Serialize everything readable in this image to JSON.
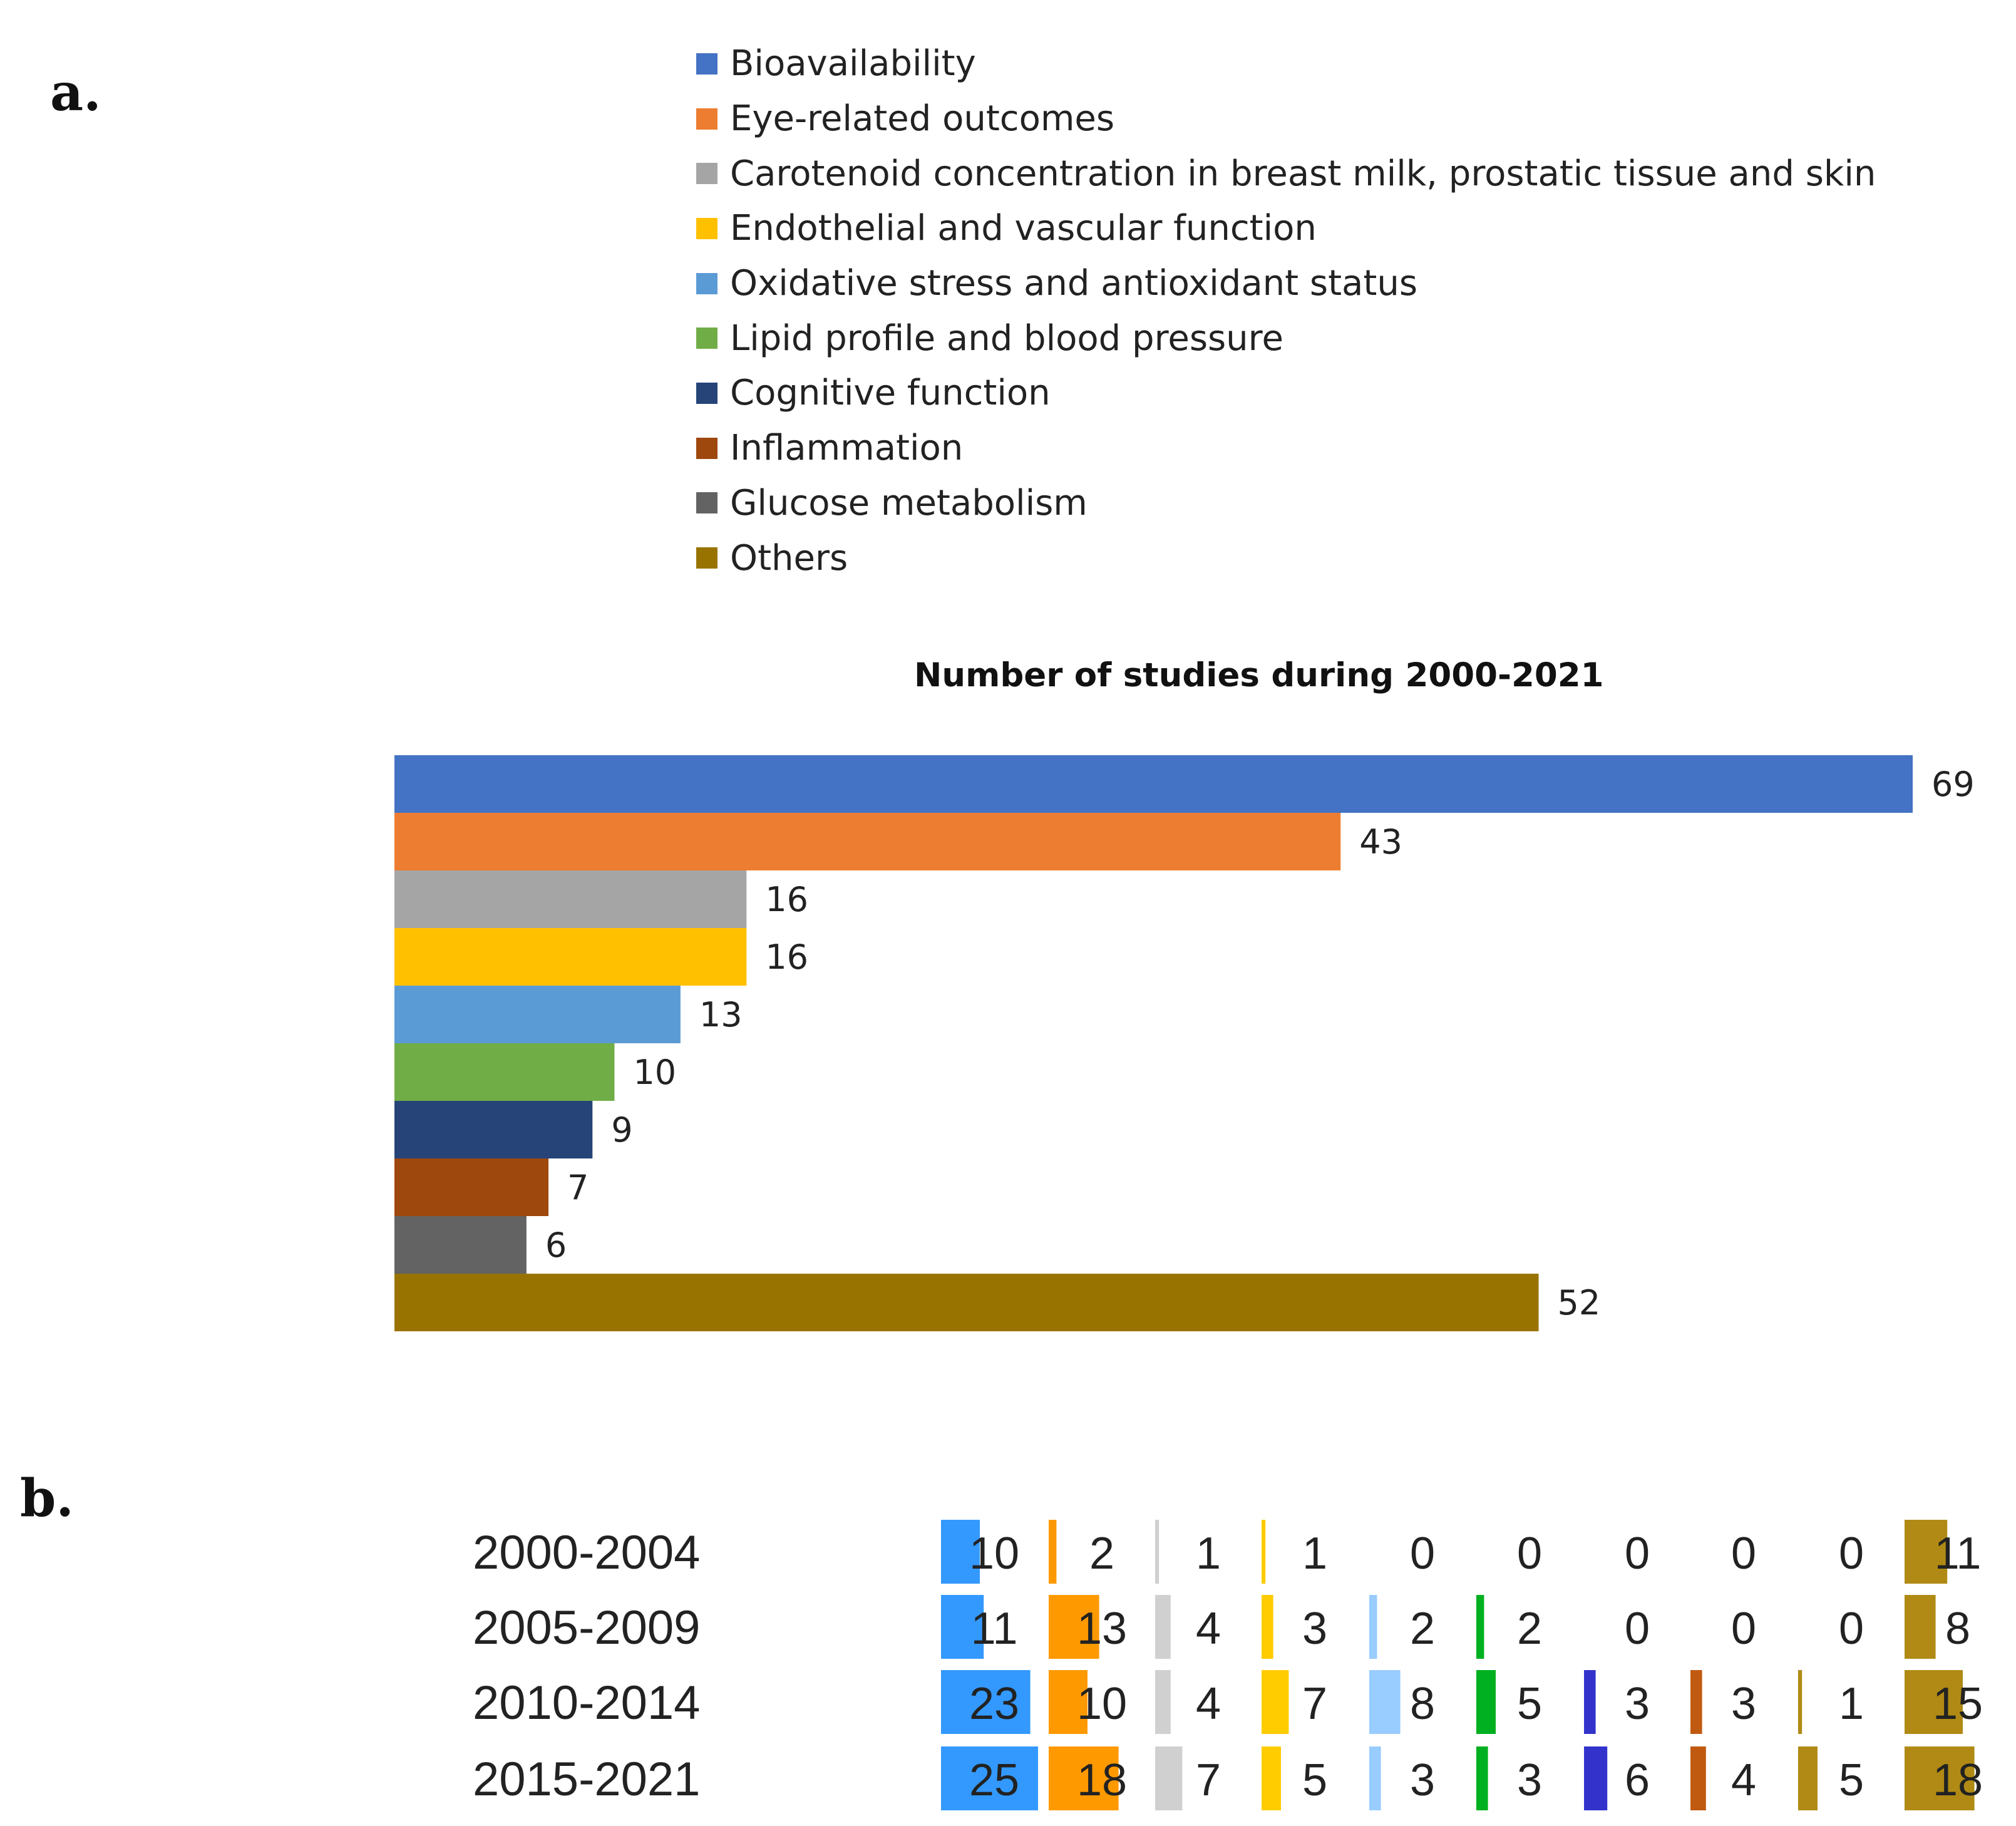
{
  "panel_labels": {
    "a": "a.",
    "b": "b."
  },
  "colors": {
    "bioavailability": "#4472c4",
    "eye": "#ed7d31",
    "carotenoid": "#a5a5a5",
    "endothelial": "#ffc000",
    "oxidative": "#5b9bd5",
    "lipid": "#70ad47",
    "cognitive": "#264478",
    "inflammation": "#9e480e",
    "glucose": "#636363",
    "others": "#997300"
  },
  "chart_data": [
    {
      "type": "bar",
      "orientation": "horizontal",
      "title": "Number of studies during 2000-2021",
      "categories": [
        "Bioavailability",
        "Eye-related outcomes",
        "Carotenoid concentration in breast milk, prostatic tissue and skin",
        "Endothelial and vascular function",
        "Oxidative stress and antioxidant status",
        "Lipid profile and blood pressure",
        "Cognitive function",
        "Inflammation",
        "Glucose metabolism",
        "Others"
      ],
      "values": [
        69,
        43,
        16,
        16,
        13,
        10,
        9,
        7,
        6,
        52
      ],
      "colors": [
        "#4472c4",
        "#ed7d31",
        "#a5a5a5",
        "#ffc000",
        "#5b9bd5",
        "#70ad47",
        "#264478",
        "#9e480e",
        "#636363",
        "#997300"
      ],
      "xlim": [
        0,
        69
      ],
      "legend": "top",
      "data_labels": true
    },
    {
      "type": "table",
      "description_free": true,
      "rows": [
        "2000-2004",
        "2005-2009",
        "2010-2014",
        "2015-2021"
      ],
      "columns": [
        "Bioavailability",
        "Eye-related outcomes",
        "Carotenoid concentration in breast milk, prostatic tissue and skin",
        "Endothelial and vascular function",
        "Oxidative stress and antioxidant status",
        "Lipid profile and blood pressure",
        "Cognitive function",
        "Inflammation",
        "Glucose metabolism",
        "Others"
      ],
      "values": [
        [
          10,
          2,
          1,
          1,
          0,
          0,
          0,
          0,
          0,
          11
        ],
        [
          11,
          13,
          4,
          3,
          2,
          2,
          0,
          0,
          0,
          8
        ],
        [
          23,
          10,
          4,
          7,
          8,
          5,
          3,
          3,
          1,
          15
        ],
        [
          25,
          18,
          7,
          5,
          3,
          3,
          6,
          4,
          5,
          18
        ]
      ],
      "bar_colors": [
        "#3399ff",
        "#ff9900",
        "#d0d0d0",
        "#ffcc00",
        "#99ccff",
        "#00b020",
        "#3333cc",
        "#c05a10",
        "#b08a14",
        "#b08a14"
      ],
      "bar_scale_max": 25
    }
  ]
}
